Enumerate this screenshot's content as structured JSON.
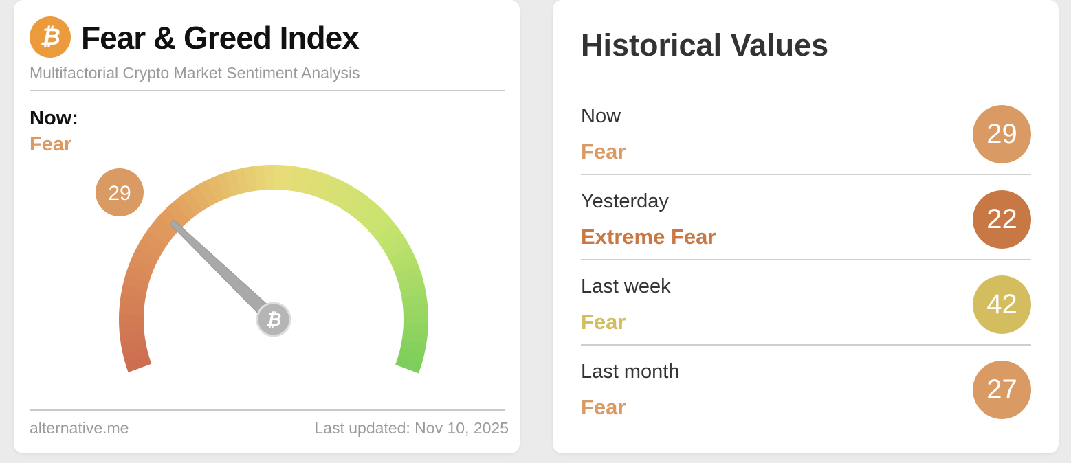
{
  "widget": {
    "logo_icon": "bitcoin-icon",
    "logo_text": "₿",
    "title": "Fear & Greed Index",
    "subtitle": "Multifactorial Crypto Market Sentiment Analysis",
    "now_label": "Now:",
    "now_status": "Fear",
    "gauge": {
      "value": 29,
      "value_label": "29",
      "min": 0,
      "max": 100,
      "badge_color": "#d99a64",
      "hub_icon": "bitcoin-icon",
      "hub_text": "₿"
    },
    "footer_source": "alternative.me",
    "footer_updated": "Last updated: Nov 10, 2025"
  },
  "history": {
    "title": "Historical Values",
    "rows": [
      {
        "label": "Now",
        "status": "Fear",
        "value": "29",
        "color": "#d99a64"
      },
      {
        "label": "Yesterday",
        "status": "Extreme Fear",
        "value": "22",
        "color": "#c87844"
      },
      {
        "label": "Last week",
        "status": "Fear",
        "value": "42",
        "color": "#d4bd5f"
      },
      {
        "label": "Last month",
        "status": "Fear",
        "value": "27",
        "color": "#d99a64"
      }
    ]
  }
}
